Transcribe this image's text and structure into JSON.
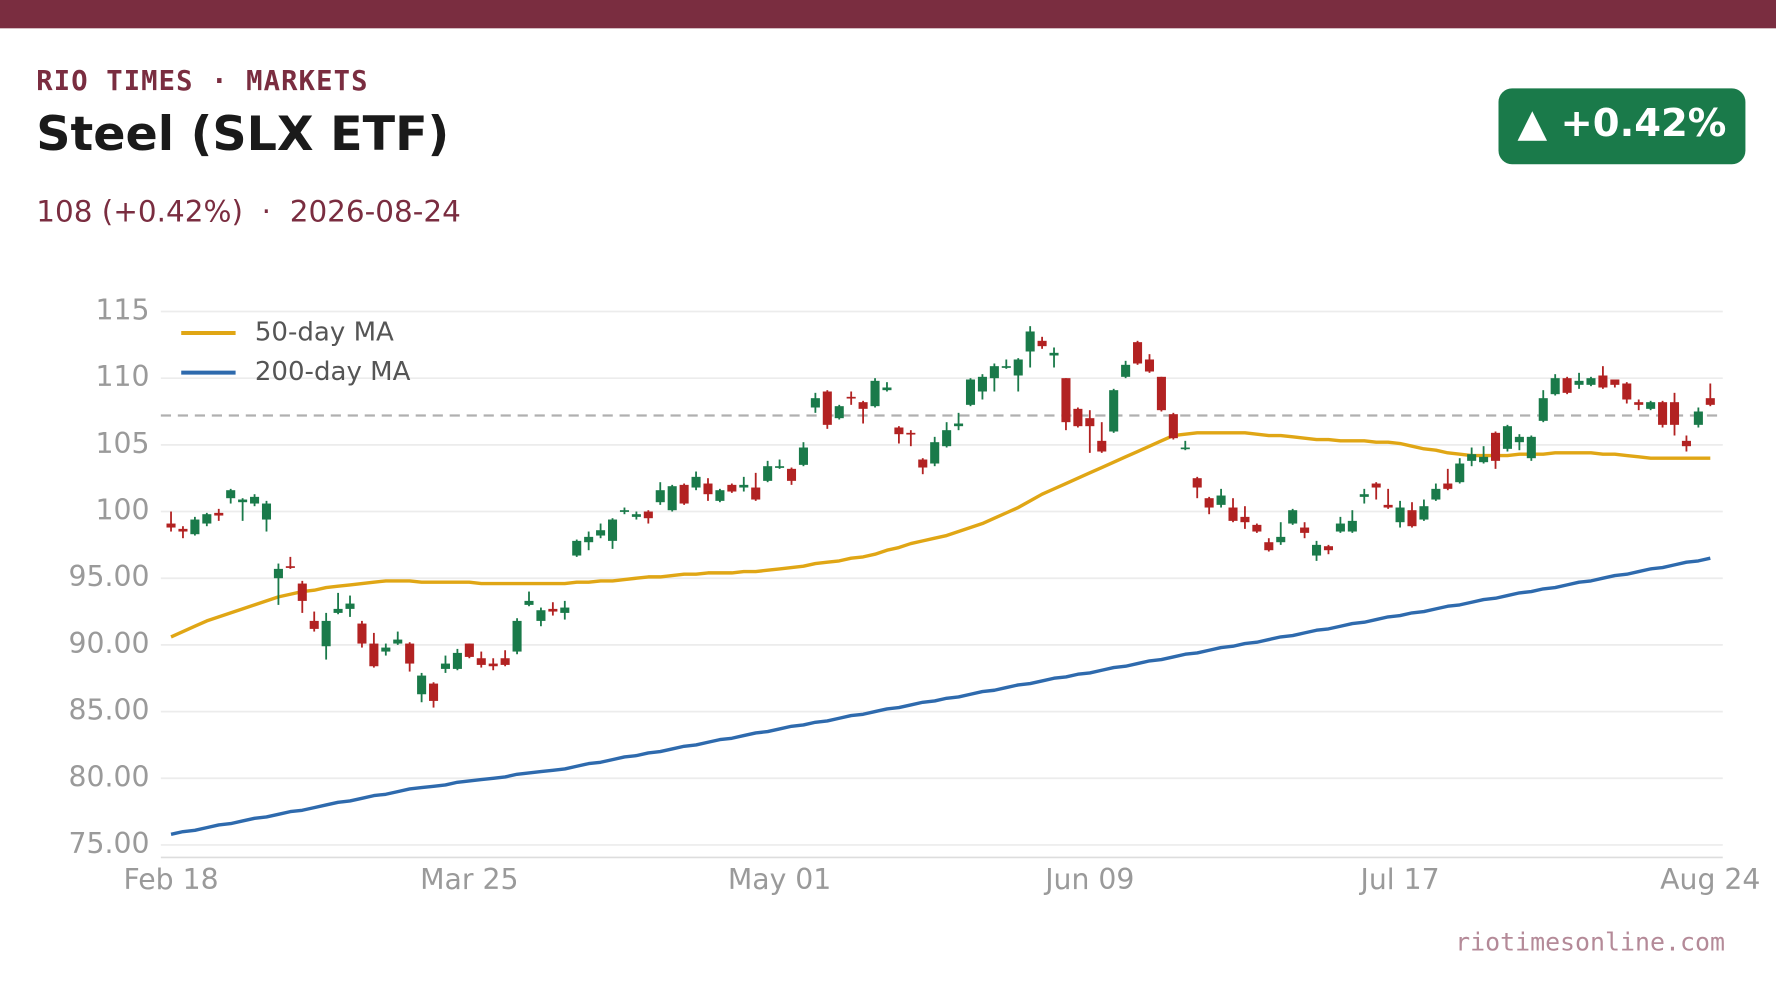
{
  "chart_data": {
    "type": "candlestick",
    "brand": "RIO TIMES · MARKETS",
    "title": "Steel (SLX ETF)",
    "subtitle": "108 (+0.42%)  ·  2026-08-24",
    "badge": "▲ +0.42%",
    "source": "riotimesonline.com",
    "x": [
      "Feb 18",
      "Feb 19",
      "Feb 20",
      "Feb 23",
      "Feb 24",
      "Feb 25",
      "Feb 26",
      "Feb 27",
      "Mar 02",
      "Mar 03",
      "Mar 04",
      "Mar 05",
      "Mar 06",
      "Mar 09",
      "Mar 10",
      "Mar 11",
      "Mar 12",
      "Mar 13",
      "Mar 16",
      "Mar 17",
      "Mar 18",
      "Mar 19",
      "Mar 20",
      "Mar 23",
      "Mar 24",
      "Mar 25",
      "Mar 26",
      "Mar 27",
      "Mar 30",
      "Mar 31",
      "Apr 01",
      "Apr 02",
      "Apr 06",
      "Apr 07",
      "Apr 08",
      "Apr 09",
      "Apr 10",
      "Apr 13",
      "Apr 14",
      "Apr 15",
      "Apr 16",
      "Apr 17",
      "Apr 20",
      "Apr 21",
      "Apr 22",
      "Apr 23",
      "Apr 24",
      "Apr 27",
      "Apr 28",
      "Apr 29",
      "Apr 30",
      "May 01",
      "May 04",
      "May 05",
      "May 06",
      "May 07",
      "May 08",
      "May 11",
      "May 12",
      "May 13",
      "May 14",
      "May 15",
      "May 18",
      "May 19",
      "May 20",
      "May 21",
      "May 22",
      "May 26",
      "May 27",
      "May 28",
      "May 29",
      "Jun 01",
      "Jun 02",
      "Jun 03",
      "Jun 04",
      "Jun 05",
      "Jun 08",
      "Jun 09",
      "Jun 10",
      "Jun 11",
      "Jun 12",
      "Jun 15",
      "Jun 16",
      "Jun 17",
      "Jun 18",
      "Jun 22",
      "Jun 23",
      "Jun 24",
      "Jun 25",
      "Jun 26",
      "Jun 29",
      "Jun 30",
      "Jul 01",
      "Jul 02",
      "Jul 06",
      "Jul 07",
      "Jul 08",
      "Jul 09",
      "Jul 10",
      "Jul 13",
      "Jul 14",
      "Jul 15",
      "Jul 16",
      "Jul 17",
      "Jul 20",
      "Jul 21",
      "Jul 22",
      "Jul 23",
      "Jul 24",
      "Jul 27",
      "Jul 28",
      "Jul 29",
      "Jul 30",
      "Jul 31",
      "Aug 03",
      "Aug 04",
      "Aug 05",
      "Aug 06",
      "Aug 07",
      "Aug 10",
      "Aug 11",
      "Aug 12",
      "Aug 13",
      "Aug 14",
      "Aug 17",
      "Aug 18",
      "Aug 19",
      "Aug 20",
      "Aug 21",
      "Aug 24"
    ],
    "open": [
      99.1,
      98.7,
      98.3,
      99.1,
      99.9,
      101.0,
      100.7,
      100.6,
      99.4,
      95.0,
      95.9,
      94.6,
      91.8,
      89.9,
      92.4,
      92.7,
      91.6,
      90.1,
      89.5,
      90.1,
      90.1,
      86.3,
      87.1,
      88.2,
      88.2,
      90.1,
      89.0,
      88.6,
      89.0,
      89.5,
      93.0,
      91.8,
      92.7,
      92.4,
      96.7,
      97.7,
      98.2,
      97.8,
      100.0,
      99.6,
      100.0,
      100.7,
      100.1,
      102.0,
      101.8,
      102.1,
      100.8,
      102.0,
      101.8,
      101.8,
      102.3,
      103.3,
      103.2,
      103.5,
      107.8,
      109.0,
      107.0,
      108.6,
      108.2,
      107.9,
      109.1,
      106.3,
      105.9,
      103.9,
      103.6,
      104.9,
      106.4,
      108.0,
      109.0,
      110.0,
      110.8,
      110.2,
      112.0,
      112.8,
      111.7,
      110.0,
      107.7,
      107.0,
      105.3,
      106.0,
      110.1,
      112.7,
      111.4,
      110.1,
      107.3,
      104.7,
      102.5,
      101.0,
      100.5,
      100.3,
      99.6,
      99.0,
      97.7,
      97.7,
      99.1,
      98.8,
      96.7,
      97.4,
      98.5,
      98.5,
      101.1,
      102.1,
      100.5,
      99.2,
      100.1,
      99.4,
      100.9,
      102.1,
      102.2,
      103.8,
      103.7,
      105.9,
      104.7,
      105.2,
      104.0,
      106.8,
      108.8,
      110.0,
      109.5,
      109.5,
      110.2,
      109.9,
      109.6,
      108.2,
      107.7,
      108.2,
      108.2,
      105.3,
      106.5,
      108.5
    ],
    "high": [
      100.0,
      98.9,
      99.6,
      99.9,
      100.2,
      101.7,
      101.0,
      101.3,
      100.8,
      96.1,
      96.6,
      94.8,
      92.5,
      92.4,
      93.9,
      93.7,
      91.8,
      90.9,
      90.1,
      91.0,
      90.2,
      87.9,
      87.2,
      89.2,
      89.7,
      90.1,
      89.5,
      89.0,
      89.6,
      92.0,
      94.0,
      92.8,
      93.2,
      93.3,
      97.9,
      98.5,
      99.1,
      99.5,
      100.3,
      100.0,
      100.1,
      102.2,
      102.0,
      102.1,
      103.0,
      102.5,
      101.7,
      102.1,
      102.6,
      102.9,
      103.8,
      103.9,
      103.3,
      105.2,
      108.9,
      109.1,
      108.0,
      109.0,
      108.3,
      110.0,
      109.7,
      106.4,
      106.1,
      104.0,
      105.6,
      106.7,
      107.4,
      110.0,
      110.3,
      111.1,
      111.4,
      111.5,
      113.9,
      113.1,
      112.3,
      110.0,
      107.8,
      107.6,
      106.7,
      109.2,
      111.3,
      112.8,
      111.8,
      110.1,
      107.4,
      105.3,
      102.6,
      101.1,
      101.7,
      101.0,
      100.4,
      99.1,
      98.0,
      99.2,
      100.2,
      99.2,
      97.8,
      97.5,
      99.6,
      100.1,
      101.7,
      102.2,
      101.7,
      100.8,
      100.7,
      100.9,
      102.1,
      103.2,
      104.0,
      104.8,
      104.9,
      106.0,
      106.5,
      105.8,
      105.7,
      109.1,
      110.3,
      110.1,
      110.4,
      110.1,
      110.9,
      109.9,
      109.7,
      108.4,
      108.3,
      108.3,
      108.9,
      105.7,
      107.8,
      109.6
    ],
    "low": [
      98.5,
      98.0,
      98.2,
      98.9,
      99.3,
      100.6,
      99.3,
      100.4,
      98.5,
      93.0,
      95.7,
      92.4,
      91.0,
      88.9,
      92.3,
      92.1,
      89.8,
      88.3,
      89.2,
      90.0,
      88.0,
      85.7,
      85.3,
      87.9,
      88.1,
      89.0,
      88.3,
      88.1,
      88.4,
      89.3,
      92.9,
      91.4,
      92.2,
      91.9,
      96.6,
      97.1,
      98.0,
      97.2,
      99.8,
      99.4,
      99.1,
      100.5,
      100.0,
      100.5,
      101.6,
      100.8,
      100.7,
      101.4,
      101.5,
      100.8,
      102.2,
      103.2,
      102.0,
      103.4,
      107.4,
      106.2,
      106.9,
      108.0,
      106.6,
      107.8,
      109.0,
      105.1,
      104.9,
      102.8,
      103.4,
      104.8,
      106.1,
      107.9,
      108.4,
      109.0,
      110.7,
      109.0,
      110.8,
      112.2,
      110.8,
      106.1,
      106.3,
      104.4,
      104.4,
      105.9,
      110.0,
      111.0,
      110.4,
      107.5,
      105.4,
      104.6,
      101.0,
      99.8,
      100.3,
      99.2,
      98.7,
      98.4,
      97.0,
      97.5,
      99.0,
      98.0,
      96.3,
      96.8,
      98.4,
      98.4,
      100.6,
      100.9,
      100.2,
      98.8,
      98.8,
      99.3,
      100.8,
      101.6,
      102.1,
      103.4,
      103.6,
      103.2,
      104.5,
      104.6,
      103.8,
      106.7,
      108.7,
      108.8,
      109.2,
      109.4,
      109.2,
      109.3,
      108.1,
      107.6,
      107.6,
      106.3,
      105.7,
      104.5,
      106.3,
      107.9
    ],
    "close": [
      98.8,
      98.5,
      99.4,
      99.8,
      99.7,
      101.6,
      100.9,
      101.1,
      100.6,
      95.7,
      95.8,
      93.3,
      91.2,
      91.8,
      92.7,
      93.1,
      90.1,
      88.4,
      89.8,
      90.4,
      88.6,
      87.7,
      85.8,
      88.6,
      89.4,
      89.1,
      88.5,
      88.4,
      88.5,
      91.8,
      93.3,
      92.6,
      92.5,
      92.8,
      97.8,
      98.1,
      98.6,
      99.4,
      100.1,
      99.8,
      99.5,
      101.6,
      101.9,
      100.6,
      102.6,
      101.3,
      101.6,
      101.5,
      102.0,
      100.9,
      103.4,
      103.4,
      102.3,
      104.8,
      108.5,
      106.5,
      107.9,
      108.5,
      107.7,
      109.8,
      109.3,
      105.8,
      105.8,
      103.3,
      105.2,
      106.1,
      106.6,
      109.9,
      110.1,
      110.9,
      110.9,
      111.4,
      113.5,
      112.4,
      111.9,
      106.7,
      106.4,
      106.4,
      104.5,
      109.1,
      111.0,
      111.1,
      110.5,
      107.6,
      105.5,
      104.8,
      101.8,
      100.3,
      101.2,
      99.3,
      99.2,
      98.5,
      97.1,
      98.1,
      100.1,
      98.4,
      97.5,
      97.1,
      99.1,
      99.3,
      101.3,
      101.8,
      100.3,
      100.3,
      98.9,
      100.4,
      101.7,
      101.7,
      103.6,
      104.3,
      104.1,
      103.8,
      106.4,
      105.6,
      105.6,
      108.5,
      110.0,
      108.9,
      109.8,
      110.0,
      109.3,
      109.5,
      108.4,
      108.0,
      108.2,
      106.5,
      106.5,
      104.9,
      107.5,
      108.0
    ],
    "up_color": "#1a7a4a",
    "down_color": "#b22222",
    "series": [
      {
        "name": "50-day MA",
        "color": "#e0a615",
        "values": [
          90.6,
          91.0,
          91.4,
          91.8,
          92.1,
          92.4,
          92.7,
          93.0,
          93.3,
          93.6,
          93.8,
          94.0,
          94.1,
          94.3,
          94.4,
          94.5,
          94.6,
          94.7,
          94.8,
          94.8,
          94.8,
          94.7,
          94.7,
          94.7,
          94.7,
          94.7,
          94.6,
          94.6,
          94.6,
          94.6,
          94.6,
          94.6,
          94.6,
          94.6,
          94.7,
          94.7,
          94.8,
          94.8,
          94.9,
          95.0,
          95.1,
          95.1,
          95.2,
          95.3,
          95.3,
          95.4,
          95.4,
          95.4,
          95.5,
          95.5,
          95.6,
          95.7,
          95.8,
          95.9,
          96.1,
          96.2,
          96.3,
          96.5,
          96.6,
          96.8,
          97.1,
          97.3,
          97.6,
          97.8,
          98.0,
          98.2,
          98.5,
          98.8,
          99.1,
          99.5,
          99.9,
          100.3,
          100.8,
          101.3,
          101.7,
          102.1,
          102.5,
          102.9,
          103.3,
          103.7,
          104.1,
          104.5,
          104.9,
          105.3,
          105.7,
          105.8,
          105.9,
          105.9,
          105.9,
          105.9,
          105.9,
          105.8,
          105.7,
          105.7,
          105.6,
          105.5,
          105.4,
          105.4,
          105.3,
          105.3,
          105.3,
          105.2,
          105.2,
          105.1,
          104.9,
          104.7,
          104.6,
          104.4,
          104.3,
          104.2,
          104.2,
          104.2,
          104.2,
          104.3,
          104.3,
          104.3,
          104.4,
          104.4,
          104.4,
          104.4,
          104.3,
          104.3,
          104.2,
          104.1,
          104.0,
          104.0,
          104.0,
          104.0,
          104.0,
          104.0
        ]
      },
      {
        "name": "200-day MA",
        "color": "#2e6aad",
        "values": [
          75.8,
          76.0,
          76.1,
          76.3,
          76.5,
          76.6,
          76.8,
          77.0,
          77.1,
          77.3,
          77.5,
          77.6,
          77.8,
          78.0,
          78.2,
          78.3,
          78.5,
          78.7,
          78.8,
          79.0,
          79.2,
          79.3,
          79.4,
          79.5,
          79.7,
          79.8,
          79.9,
          80.0,
          80.1,
          80.3,
          80.4,
          80.5,
          80.6,
          80.7,
          80.9,
          81.1,
          81.2,
          81.4,
          81.6,
          81.7,
          81.9,
          82.0,
          82.2,
          82.4,
          82.5,
          82.7,
          82.9,
          83.0,
          83.2,
          83.4,
          83.5,
          83.7,
          83.9,
          84.0,
          84.2,
          84.3,
          84.5,
          84.7,
          84.8,
          85.0,
          85.2,
          85.3,
          85.5,
          85.7,
          85.8,
          86.0,
          86.1,
          86.3,
          86.5,
          86.6,
          86.8,
          87.0,
          87.1,
          87.3,
          87.5,
          87.6,
          87.8,
          87.9,
          88.1,
          88.3,
          88.4,
          88.6,
          88.8,
          88.9,
          89.1,
          89.3,
          89.4,
          89.6,
          89.8,
          89.9,
          90.1,
          90.2,
          90.4,
          90.6,
          90.7,
          90.9,
          91.1,
          91.2,
          91.4,
          91.6,
          91.7,
          91.9,
          92.1,
          92.2,
          92.4,
          92.5,
          92.7,
          92.9,
          93.0,
          93.2,
          93.4,
          93.5,
          93.7,
          93.9,
          94.0,
          94.2,
          94.3,
          94.5,
          94.7,
          94.8,
          95.0,
          95.2,
          95.3,
          95.5,
          95.7,
          95.8,
          96.0,
          96.2,
          96.3,
          96.5
        ]
      }
    ],
    "reference_line": 107.2,
    "ylim": [
      74,
      115.5
    ],
    "yticks": [
      {
        "value": 75,
        "label": "75.00"
      },
      {
        "value": 80,
        "label": "80.00"
      },
      {
        "value": 85,
        "label": "85.00"
      },
      {
        "value": 90,
        "label": "90.00"
      },
      {
        "value": 95,
        "label": "95.00"
      },
      100,
      105,
      110,
      115
    ],
    "xticks": [
      "Feb 18",
      "Mar 25",
      "May 01",
      "Jun 09",
      "Jul 17",
      "Aug 24"
    ],
    "grid": true,
    "legend": "upper left"
  }
}
